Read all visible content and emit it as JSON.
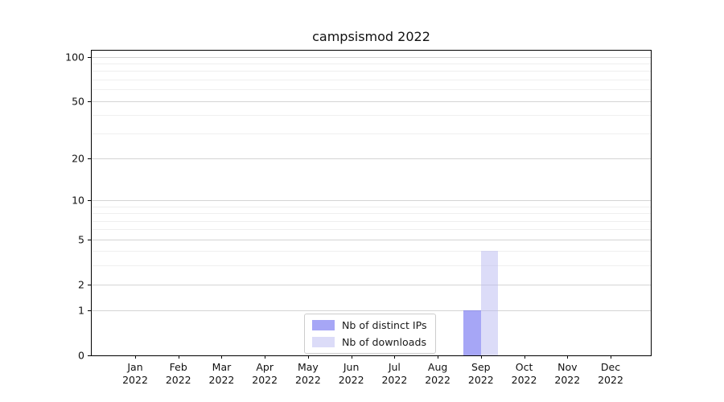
{
  "title": "campsismod 2022",
  "chart_data": {
    "type": "bar",
    "title": "campsismod 2022",
    "categories": [
      "Jan 2022",
      "Feb 2022",
      "Mar 2022",
      "Apr 2022",
      "May 2022",
      "Jun 2022",
      "Jul 2022",
      "Aug 2022",
      "Sep 2022",
      "Oct 2022",
      "Nov 2022",
      "Dec 2022"
    ],
    "x_tick_months": [
      "Jan",
      "Feb",
      "Mar",
      "Apr",
      "May",
      "Jun",
      "Jul",
      "Aug",
      "Sep",
      "Oct",
      "Nov",
      "Dec"
    ],
    "x_tick_year": "2022",
    "series": [
      {
        "name": "Nb of distinct IPs",
        "color": "rgba(107,107,240,0.6)",
        "values": [
          0,
          0,
          0,
          0,
          0,
          0,
          0,
          0,
          1,
          0,
          0,
          0
        ]
      },
      {
        "name": "Nb of downloads",
        "color": "rgba(185,185,241,0.5)",
        "values": [
          0,
          0,
          0,
          0,
          0,
          0,
          0,
          0,
          4,
          0,
          0,
          0
        ]
      }
    ],
    "xlabel": "",
    "ylabel": "",
    "yscale": "symlog-like (log1p)",
    "y_ticks": [
      0,
      1,
      2,
      5,
      10,
      20,
      50,
      100
    ],
    "y_minor_ticks": [
      3,
      4,
      6,
      7,
      8,
      9,
      30,
      40,
      60,
      70,
      80,
      90
    ],
    "ylim": [
      0,
      110
    ],
    "grid": "horizontal major and minor gridlines",
    "legend_position": "inside axes, lower center"
  },
  "colors": {
    "distinct_ips_bar": "rgba(107,107,240,0.6)",
    "downloads_bar": "rgba(185,185,241,0.5)",
    "major_grid": "#d4d4d4",
    "minor_grid": "#efefef",
    "axis_spine": "#000000",
    "legend_border": "#cccccc"
  }
}
